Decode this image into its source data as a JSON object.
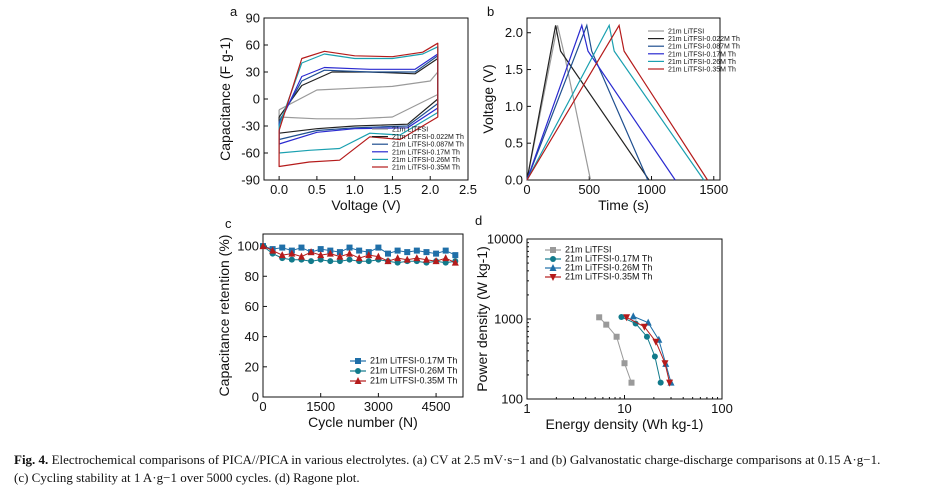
{
  "caption": {
    "label": "Fig. 4.",
    "line1": "Electrochemical comparisons of PICA//PICA in various electrolytes. (a) CV at 2.5 mV·s−1 and (b) Galvanostatic charge-discharge comparisons at 0.15 A·g−1.",
    "line2": "(c) Cycling stability at 1 A·g−1 over 5000 cycles. (d) Ragone plot."
  },
  "colors": {
    "gray": "#9a9a9a",
    "black": "#222222",
    "blue": "#2a2ad0",
    "cyan": "#1aa0b0",
    "steel": "#1f6fa8",
    "red": "#b51b1b",
    "teal": "#117a8b",
    "navy": "#1f4f8f"
  },
  "chart_data": [
    {
      "panel": "a",
      "type": "line",
      "xlabel": "Voltage (V)",
      "ylabel": "Capacitance (F g-1)",
      "xlim": [
        -0.2,
        2.5
      ],
      "ylim": [
        -90,
        90
      ],
      "xticks": [
        "0.0",
        "0.5",
        "1.0",
        "1.5",
        "2.0",
        "2.5"
      ],
      "yticks": [
        "90",
        "60",
        "30",
        "0",
        "-30",
        "-60",
        "-90"
      ],
      "series": [
        {
          "name": "21m LiTFSI",
          "color": "gray",
          "anodic": [
            [
              0,
              -12
            ],
            [
              0.5,
              10
            ],
            [
              1.0,
              12
            ],
            [
              1.5,
              14
            ],
            [
              2.0,
              20
            ],
            [
              2.1,
              30
            ]
          ],
          "cathodic": [
            [
              2.1,
              5
            ],
            [
              1.5,
              -20
            ],
            [
              1.0,
              -22
            ],
            [
              0.5,
              -22
            ],
            [
              0,
              -20
            ]
          ]
        },
        {
          "name": "21m LiTFSI-0.022M Th",
          "color": "black",
          "anodic": [
            [
              0,
              -20
            ],
            [
              0.3,
              15
            ],
            [
              0.7,
              30
            ],
            [
              1.2,
              30
            ],
            [
              1.8,
              28
            ],
            [
              2.1,
              45
            ]
          ],
          "cathodic": [
            [
              2.1,
              0
            ],
            [
              1.7,
              -28
            ],
            [
              1.0,
              -30
            ],
            [
              0.5,
              -33
            ],
            [
              0,
              -38
            ]
          ]
        },
        {
          "name": "21m LiTFSI-0.087M Th",
          "color": "navy",
          "anodic": [
            [
              0,
              -25
            ],
            [
              0.3,
              20
            ],
            [
              0.6,
              32
            ],
            [
              1.2,
              30
            ],
            [
              1.8,
              30
            ],
            [
              2.1,
              48
            ]
          ],
          "cathodic": [
            [
              2.1,
              -5
            ],
            [
              1.7,
              -30
            ],
            [
              1.0,
              -32
            ],
            [
              0.5,
              -35
            ],
            [
              0,
              -45
            ]
          ]
        },
        {
          "name": "21m LiTFSI-0.17M Th",
          "color": "blue",
          "anodic": [
            [
              0,
              -28
            ],
            [
              0.3,
              25
            ],
            [
              0.6,
              35
            ],
            [
              1.2,
              33
            ],
            [
              1.8,
              33
            ],
            [
              2.1,
              50
            ]
          ],
          "cathodic": [
            [
              2.1,
              -10
            ],
            [
              1.7,
              -32
            ],
            [
              1.0,
              -33
            ],
            [
              0.5,
              -37
            ],
            [
              0,
              -50
            ]
          ]
        },
        {
          "name": "21m LiTFSI-0.26M Th",
          "color": "cyan",
          "anodic": [
            [
              0,
              -30
            ],
            [
              0.3,
              40
            ],
            [
              0.6,
              50
            ],
            [
              1.0,
              45
            ],
            [
              1.5,
              45
            ],
            [
              1.9,
              50
            ],
            [
              2.1,
              58
            ]
          ],
          "cathodic": [
            [
              2.1,
              -15
            ],
            [
              1.6,
              -40
            ],
            [
              1.2,
              -38
            ],
            [
              0.8,
              -55
            ],
            [
              0.4,
              -57
            ],
            [
              0,
              -60
            ]
          ]
        },
        {
          "name": "21m LiTFSI-0.35M Th",
          "color": "red",
          "anodic": [
            [
              0,
              -35
            ],
            [
              0.3,
              45
            ],
            [
              0.6,
              53
            ],
            [
              1.0,
              48
            ],
            [
              1.5,
              47
            ],
            [
              1.9,
              52
            ],
            [
              2.1,
              62
            ]
          ],
          "cathodic": [
            [
              2.1,
              -20
            ],
            [
              1.6,
              -45
            ],
            [
              1.2,
              -42
            ],
            [
              0.8,
              -68
            ],
            [
              0.4,
              -70
            ],
            [
              0,
              -75
            ]
          ]
        }
      ]
    },
    {
      "panel": "b",
      "type": "line",
      "xlabel": "Time (s)",
      "ylabel": "Voltage (V)",
      "xlim": [
        0,
        1550
      ],
      "ylim": [
        0,
        2.2
      ],
      "xticks": [
        "0",
        "500",
        "1000",
        "1500"
      ],
      "yticks": [
        "0.0",
        "0.5",
        "1.0",
        "1.5",
        "2.0"
      ],
      "series": [
        {
          "name": "21m LiTFSI",
          "color": "gray",
          "points": [
            [
              0,
              0
            ],
            [
              245,
              2.1
            ],
            [
              300,
              1.7
            ],
            [
              510,
              0
            ]
          ]
        },
        {
          "name": "21m LiTFSI-0.022M Th",
          "color": "black",
          "points": [
            [
              0,
              0
            ],
            [
              230,
              2.1
            ],
            [
              270,
              1.75
            ],
            [
              980,
              0
            ]
          ]
        },
        {
          "name": "21m LiTFSI-0.087M Th",
          "color": "navy",
          "points": [
            [
              0,
              0
            ],
            [
              480,
              2.1
            ],
            [
              520,
              1.75
            ],
            [
              970,
              0
            ]
          ]
        },
        {
          "name": "21m LiTFSI-0.17M Th",
          "color": "blue",
          "points": [
            [
              0,
              0
            ],
            [
              440,
              2.1
            ],
            [
              490,
              1.75
            ],
            [
              1190,
              0
            ]
          ]
        },
        {
          "name": "21m LiTFSI-0.26M Th",
          "color": "cyan",
          "points": [
            [
              0,
              0
            ],
            [
              660,
              2.1
            ],
            [
              700,
              1.75
            ],
            [
              1420,
              0
            ]
          ]
        },
        {
          "name": "21m LiTFSI-0.35M Th",
          "color": "red",
          "points": [
            [
              0,
              0
            ],
            [
              740,
              2.1
            ],
            [
              780,
              1.75
            ],
            [
              1450,
              0
            ]
          ]
        }
      ]
    },
    {
      "panel": "c",
      "type": "line",
      "xlabel": "Cycle number (N)",
      "ylabel": "Capacitance retention (%)",
      "xlim": [
        0,
        5200
      ],
      "ylim": [
        0,
        108
      ],
      "xticks": [
        "0",
        "1500",
        "3000",
        "4500"
      ],
      "yticks": [
        "0",
        "20",
        "40",
        "60",
        "80",
        "100"
      ],
      "series": [
        {
          "name": "21m LiTFSI-0.17M Th",
          "color": "steel",
          "marker": "square",
          "x": [
            0,
            250,
            500,
            750,
            1000,
            1250,
            1500,
            1750,
            2000,
            2250,
            2500,
            2750,
            3000,
            3250,
            3500,
            3750,
            4000,
            4250,
            4500,
            4750,
            5000
          ],
          "values": [
            100,
            98,
            99,
            97,
            99,
            96,
            98,
            97,
            96,
            99,
            97,
            96,
            99,
            95,
            97,
            96,
            97,
            96,
            95,
            97,
            94
          ]
        },
        {
          "name": "21m LiTFSI-0.26M Th",
          "color": "teal",
          "marker": "circle",
          "x": [
            0,
            250,
            500,
            750,
            1000,
            1250,
            1500,
            1750,
            2000,
            2250,
            2500,
            2750,
            3000,
            3250,
            3500,
            3750,
            4000,
            4250,
            4500,
            4750,
            5000
          ],
          "values": [
            100,
            95,
            92,
            91,
            91,
            90,
            91,
            90,
            90,
            91,
            90,
            90,
            91,
            90,
            89,
            90,
            90,
            89,
            90,
            89,
            90
          ]
        },
        {
          "name": "21m LiTFSI-0.35M Th",
          "color": "red",
          "marker": "triangle",
          "x": [
            0,
            250,
            500,
            750,
            1000,
            1250,
            1500,
            1750,
            2000,
            2250,
            2500,
            2750,
            3000,
            3250,
            3500,
            3750,
            4000,
            4250,
            4500,
            4750,
            5000
          ],
          "values": [
            100,
            97,
            94,
            95,
            93,
            96,
            94,
            95,
            93,
            95,
            92,
            94,
            93,
            90,
            92,
            91,
            92,
            91,
            90,
            92,
            89
          ]
        }
      ]
    },
    {
      "panel": "d",
      "type": "scatter",
      "xscale": "log",
      "yscale": "log",
      "xlabel": "Energy density (Wh kg-1)",
      "ylabel": "Power density (W kg-1)",
      "xlim": [
        1,
        100
      ],
      "ylim": [
        100,
        10000
      ],
      "xticks": [
        "1",
        "10",
        "100"
      ],
      "yticks": [
        "100",
        "1000",
        "10000"
      ],
      "series": [
        {
          "name": "21m LiTFSI",
          "color": "gray",
          "marker": "square",
          "x": [
            5.5,
            6.5,
            8.3,
            10,
            11.8
          ],
          "values": [
            1050,
            850,
            600,
            280,
            160
          ]
        },
        {
          "name": "21m LiTFSI-0.17M Th",
          "color": "teal",
          "marker": "circle",
          "x": [
            9.3,
            13,
            17,
            20.5,
            23.5
          ],
          "values": [
            1060,
            880,
            600,
            340,
            160
          ]
        },
        {
          "name": "21m LiTFSI-0.26M Th",
          "color": "steel",
          "marker": "triangle",
          "x": [
            12.3,
            17.5,
            22.5,
            26.5,
            30
          ],
          "values": [
            1080,
            900,
            550,
            275,
            160
          ]
        },
        {
          "name": "21m LiTFSI-0.35M Th",
          "color": "red",
          "marker": "triangledown",
          "x": [
            10.5,
            16,
            21,
            26,
            29
          ],
          "values": [
            1050,
            800,
            520,
            280,
            160
          ]
        }
      ]
    }
  ]
}
